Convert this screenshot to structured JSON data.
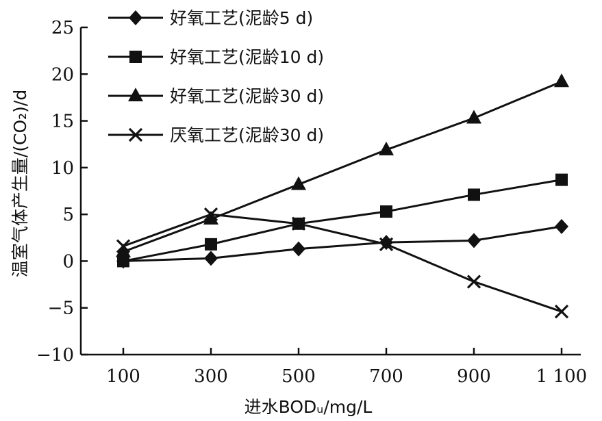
{
  "chart_data": {
    "type": "line",
    "xlabel": "进水BODᵤ/mg/L",
    "ylabel": "温室气体产生量/(CO₂)/d",
    "x": [
      100,
      300,
      500,
      700,
      900,
      1100
    ],
    "x_tick_labels": [
      "100",
      "300",
      "500",
      "700",
      "900",
      "1 100"
    ],
    "ylim": [
      -10,
      25
    ],
    "y_ticks": [
      -10,
      -5,
      0,
      5,
      10,
      15,
      20,
      25
    ],
    "y_tick_labels": [
      "−10",
      "−5",
      "0",
      "5",
      "10",
      "15",
      "20",
      "25"
    ],
    "legend_position": "top-left",
    "series": [
      {
        "name": "好氧工艺(泥龄5 d)",
        "marker": "diamond",
        "values": [
          0.0,
          0.3,
          1.3,
          2.0,
          2.2,
          3.7
        ]
      },
      {
        "name": "好氧工艺(泥龄10 d)",
        "marker": "square",
        "values": [
          0.0,
          1.8,
          4.0,
          5.3,
          7.1,
          8.7
        ]
      },
      {
        "name": "好氧工艺(泥龄30 d)",
        "marker": "triangle",
        "values": [
          1.0,
          4.5,
          8.2,
          11.9,
          15.3,
          19.2
        ]
      },
      {
        "name": "厌氧工艺(泥龄30 d)",
        "marker": "x",
        "values": [
          1.6,
          5.0,
          4.0,
          1.8,
          -2.2,
          -5.4
        ]
      }
    ]
  }
}
